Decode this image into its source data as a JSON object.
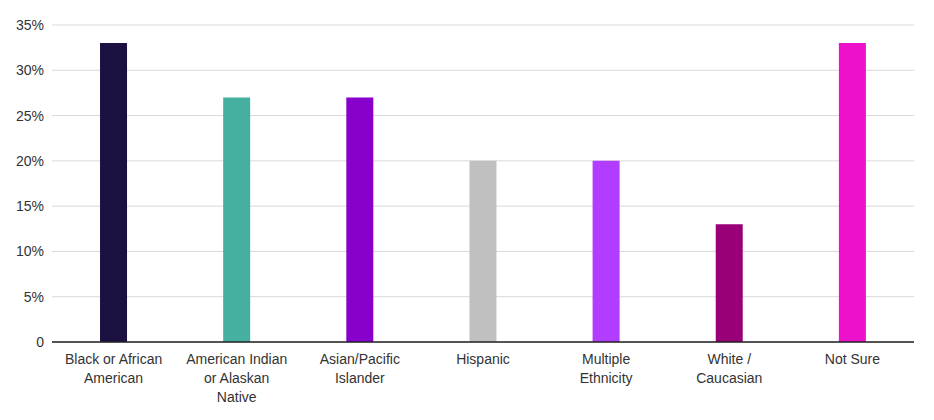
{
  "chart_data": {
    "type": "bar",
    "categories": [
      "Black or African American",
      "American Indian or Alaskan Native",
      "Asian/Pacific Islander",
      "Hispanic",
      "Multiple Ethnicity",
      "White / Caucasian",
      "Not Sure"
    ],
    "values": [
      33,
      27,
      27,
      20,
      20,
      13,
      33
    ],
    "colors": [
      "#1b1040",
      "#45b0a0",
      "#8800cc",
      "#c0c0c0",
      "#b23cff",
      "#990077",
      "#ee11cc"
    ],
    "ylim": [
      0,
      35
    ],
    "yticks": [
      0,
      {
        "value": 5,
        "label": "5%"
      },
      {
        "value": 10,
        "label": "10%"
      },
      {
        "value": 15,
        "label": "15%"
      },
      {
        "value": 20,
        "label": "20%"
      },
      {
        "value": 25,
        "label": "25%"
      },
      {
        "value": 30,
        "label": "30%"
      },
      {
        "value": 35,
        "label": "35%"
      }
    ],
    "grid": true
  }
}
